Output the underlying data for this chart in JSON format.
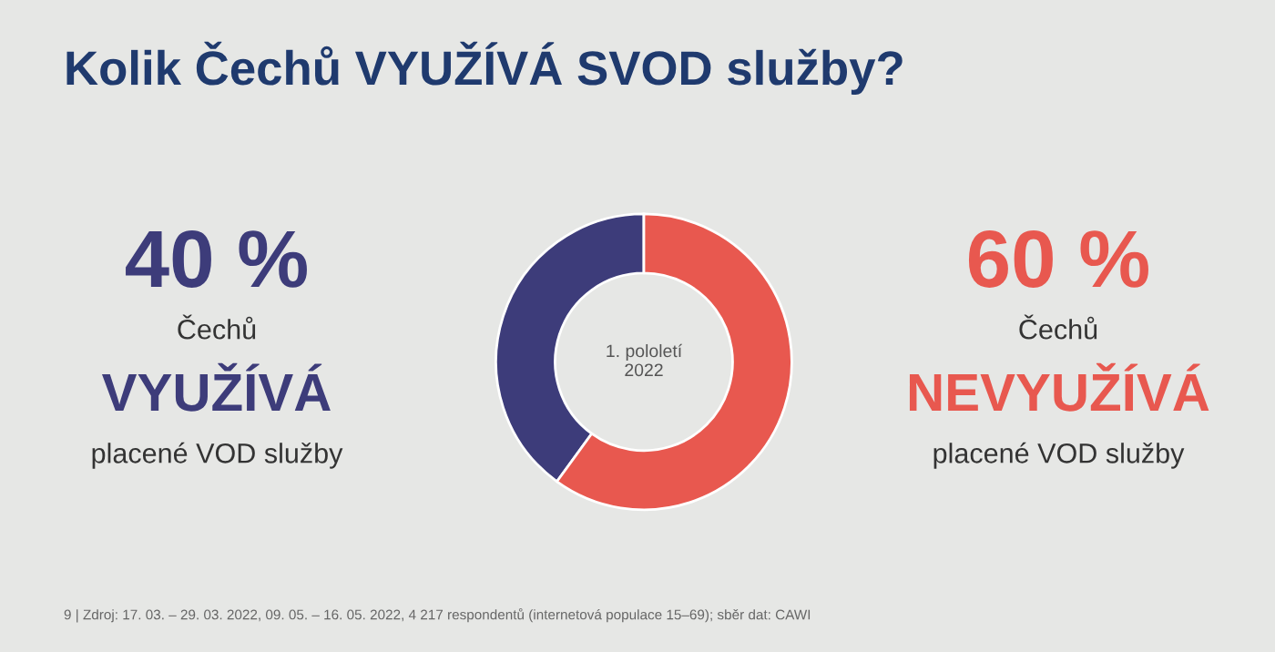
{
  "chart_data": {
    "type": "donut",
    "title": "Kolik Čechů VYUŽÍVÁ SVOD služby?",
    "categories": [
      "VYUŽÍVÁ",
      "NEVYUŽÍVÁ"
    ],
    "values": [
      40,
      60
    ],
    "colors": [
      "#3d3c7a",
      "#e8584f"
    ],
    "value_labels": [
      "40 %",
      "60 %"
    ],
    "annotations": [
      "1. pololetí\n2022",
      "Čechů",
      "placené VOD služby",
      "Čechů",
      "placené VOD služby",
      "9 | Zdroj: 17. 03. – 29. 03. 2022, 09. 05. – 16. 05. 2022, 4 217 respondentů (internetová populace 15–69); sběr dat: CAWI"
    ]
  }
}
